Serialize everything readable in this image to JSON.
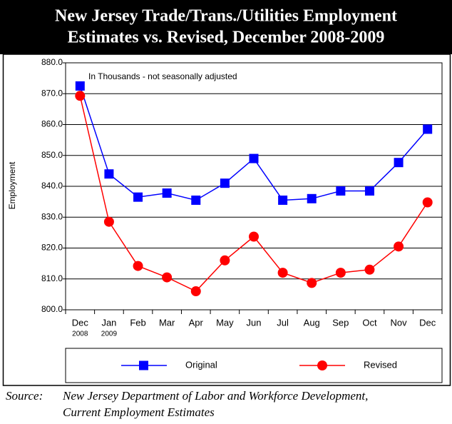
{
  "chart_data": {
    "type": "line",
    "title_lines": [
      "New Jersey Trade/Trans./Utilities Employment",
      "Estimates vs. Revised, December 2008-2009"
    ],
    "annotation": "In Thousands - not seasonally adjusted",
    "y_label": "Employment",
    "categories": [
      "Dec",
      "Jan",
      "Feb",
      "Mar",
      "Apr",
      "May",
      "Jun",
      "Jul",
      "Aug",
      "Sep",
      "Oct",
      "Nov",
      "Dec"
    ],
    "category_sublabels": [
      "2008",
      "2009",
      null,
      null,
      null,
      null,
      null,
      null,
      null,
      null,
      null,
      null,
      null
    ],
    "series": [
      {
        "name": "Original",
        "color": "#0000ff",
        "marker": "square",
        "values": [
          872.5,
          844,
          836.5,
          837.8,
          835.5,
          841,
          849,
          835.5,
          836,
          838.5,
          838.5,
          847.7,
          858.5
        ]
      },
      {
        "name": "Revised",
        "color": "#ff0000",
        "marker": "circle",
        "values": [
          869.3,
          828.5,
          814.2,
          810.5,
          806,
          816,
          823.7,
          812,
          808.7,
          812,
          813,
          820.5,
          834.8
        ]
      }
    ],
    "ylim": [
      800,
      880
    ],
    "yticks": [
      {
        "value": 800,
        "label": "800.0"
      },
      {
        "value": 810,
        "label": "810.0"
      },
      {
        "value": 820,
        "label": "820.0"
      },
      {
        "value": 830,
        "label": "830.0"
      },
      {
        "value": 840,
        "label": "840.0"
      },
      {
        "value": 850,
        "label": "850.0"
      },
      {
        "value": 860,
        "label": "860.0"
      },
      {
        "value": 870,
        "label": "870.0"
      },
      {
        "value": 880,
        "label": "880.0"
      }
    ],
    "grid": true,
    "source_label": "Source:",
    "source_lines": [
      "New Jersey Department of Labor and Workforce Development,",
      "Current Employment Estimates"
    ]
  }
}
